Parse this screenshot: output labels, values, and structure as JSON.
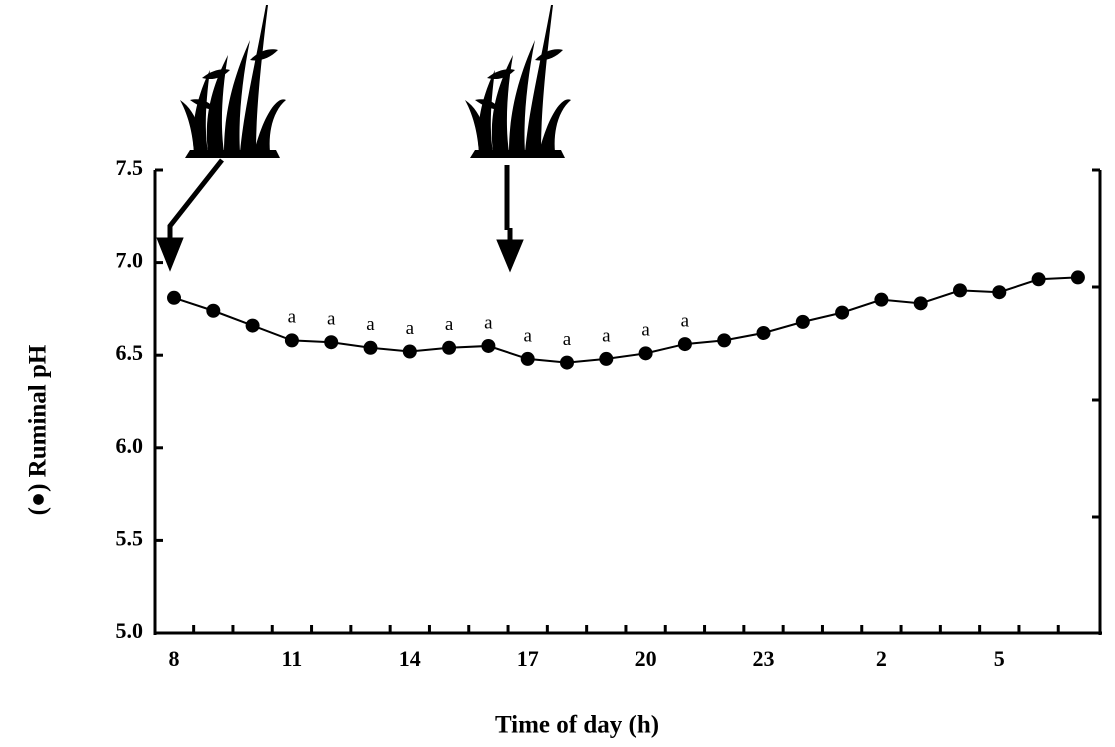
{
  "chart_data": {
    "type": "line",
    "y_label": "(●) Ruminal pH",
    "x_label": "Time of day (h)",
    "categories": [
      "8",
      null,
      null,
      "11",
      null,
      null,
      "14",
      null,
      null,
      "17",
      null,
      null,
      "20",
      null,
      null,
      "23",
      null,
      null,
      "2",
      null,
      null,
      "5",
      null,
      null
    ],
    "values": [
      6.81,
      6.74,
      6.66,
      6.58,
      6.57,
      6.54,
      6.52,
      6.54,
      6.55,
      6.48,
      6.46,
      6.48,
      6.51,
      6.56,
      6.58,
      6.62,
      6.68,
      6.73,
      6.8,
      6.78,
      6.85,
      6.84,
      6.91,
      6.92
    ],
    "significance": [
      null,
      null,
      null,
      "a",
      "a",
      "a",
      "a",
      "a",
      "a",
      "a",
      "a",
      "a",
      "a",
      "a",
      null,
      null,
      null,
      null,
      null,
      null,
      null,
      null,
      null,
      null
    ],
    "color": "#000000",
    "ylim": [
      5,
      7.5
    ],
    "yticks": [
      {
        "value": 5,
        "label": "5.0"
      },
      5.5,
      {
        "value": 6,
        "label": "6.0"
      },
      6.5,
      {
        "value": 7,
        "label": "7.0"
      },
      7.5
    ]
  }
}
